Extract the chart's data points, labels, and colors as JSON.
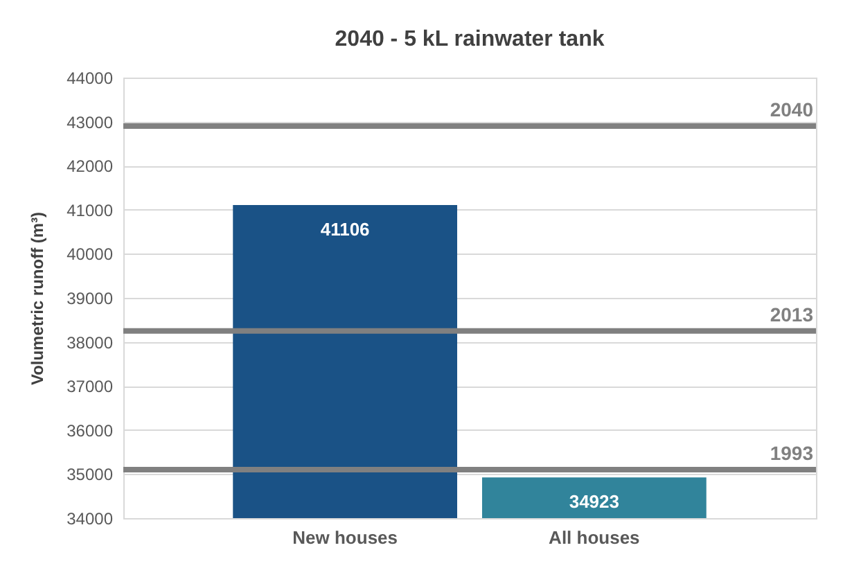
{
  "chart_data": {
    "type": "bar",
    "title": "2040 - 5 kL rainwater tank",
    "ylabel": "Volumetric runoff (m³)",
    "categories": [
      "New houses",
      "All houses"
    ],
    "values": [
      41106,
      34923
    ],
    "colors": [
      "#1a5286",
      "#31849b"
    ],
    "ylim": [
      34000,
      44000
    ],
    "yticks": [
      34000,
      35000,
      36000,
      37000,
      38000,
      39000,
      40000,
      41000,
      42000,
      43000,
      44000
    ],
    "grid": "y",
    "data_labels": true,
    "ref_lines": [
      {
        "axis": "y",
        "value": 42900,
        "color": "#808080"
      },
      {
        "axis": "y",
        "value": 38250,
        "color": "#808080"
      },
      {
        "axis": "y",
        "value": 35100,
        "color": "#808080"
      }
    ],
    "annotations": [
      {
        "text": "2040",
        "y": 42900
      },
      {
        "text": "2013",
        "y": 38250
      },
      {
        "text": "1993",
        "y": 35100
      }
    ]
  }
}
